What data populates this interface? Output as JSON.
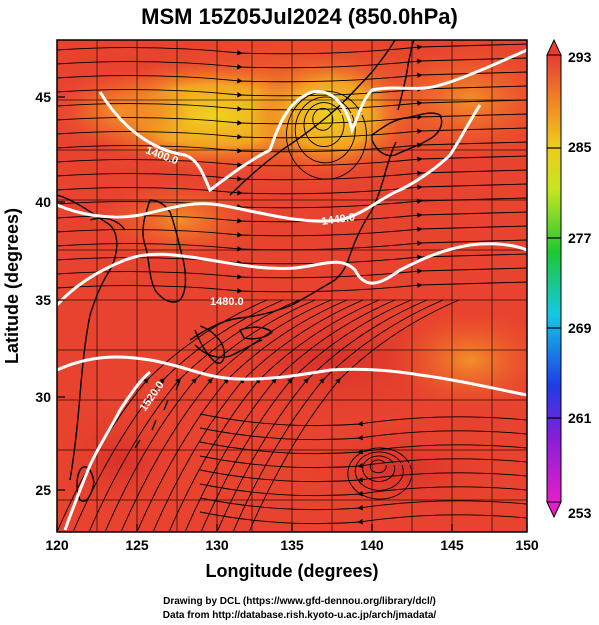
{
  "title": "MSM 15Z05Jul2024 (850.0hPa)",
  "xlabel": "Longitude (degrees)",
  "ylabel": "Latitude  (degrees)",
  "x_ticks": [
    "120",
    "125",
    "130",
    "135",
    "140",
    "145",
    "150"
  ],
  "y_ticks": [
    "25",
    "30",
    "35",
    "40",
    "45"
  ],
  "colorbar_ticks": [
    "293",
    "285",
    "277",
    "269",
    "261",
    "253"
  ],
  "contour_labels": [
    "1400.0",
    "1440.0",
    "1480.0",
    "1520.0"
  ],
  "credit_line1": "Drawing by DCL (https://www.gfd-dennou.org/library/dcl/)",
  "credit_line2": "Data from http://database.rish.kyoto-u.ac.jp/arch/jmadata/",
  "chart_data": {
    "type": "heatmap",
    "title": "MSM 15Z05Jul2024 (850.0hPa)",
    "xlabel": "Longitude (degrees)",
    "ylabel": "Latitude  (degrees)",
    "xlim": [
      120,
      150
    ],
    "ylim": [
      22.5,
      47.5
    ],
    "colorbar_range": [
      253,
      293
    ],
    "colorbar_ticks": [
      293,
      285,
      277,
      269,
      261,
      253
    ],
    "contour_levels": [
      1400.0,
      1440.0,
      1480.0,
      1520.0
    ],
    "overlays": [
      "streamlines",
      "coastlines",
      "geopotential height contours"
    ],
    "grid": true
  },
  "colors": {
    "warm_red": "#e8432e",
    "orange": "#f07a25",
    "yellow": "#e7c21a",
    "contour": "#ffffff"
  }
}
